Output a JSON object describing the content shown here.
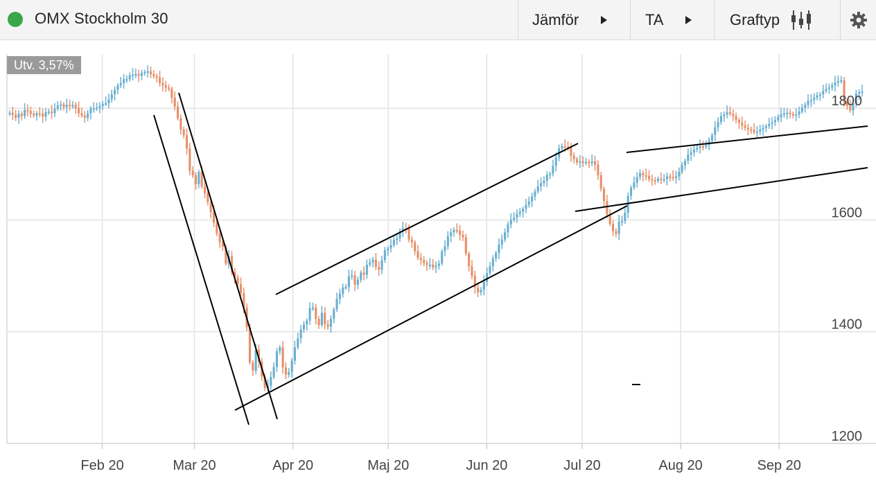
{
  "header": {
    "title": "OMX Stockholm 30",
    "status_color": "#3aa64a",
    "compare_label": "Jämför",
    "ta_label": "TA",
    "charttype_label": "Graftyp",
    "settings_icon": "gear-icon",
    "charttype_icon": "candlestick-icon"
  },
  "badge": {
    "label": "Utv. 3,57%"
  },
  "chart_data": {
    "type": "candlestick",
    "title": "OMX Stockholm 30",
    "change_label": "Utv. 3,57%",
    "x_tick_labels": [
      "Feb 20",
      "Mar 20",
      "Apr 20",
      "Maj 20",
      "Jun 20",
      "Jul 20",
      "Aug 20",
      "Sep 20"
    ],
    "x_tick_dates": [
      "2020-02-01",
      "2020-03-01",
      "2020-04-01",
      "2020-05-01",
      "2020-06-01",
      "2020-07-01",
      "2020-08-01",
      "2020-09-01"
    ],
    "x_range": [
      "2020-01-02",
      "2020-09-28"
    ],
    "y_ticks": [
      1200,
      1400,
      1600,
      1800
    ],
    "ylim": [
      1200,
      1897
    ],
    "y_axis_position": "right",
    "grid": true,
    "colors": {
      "up": "#6ab0d0",
      "down": "#e6906a",
      "grid": "#e3e3e3",
      "trend": "#000000"
    },
    "closes": [
      1792,
      1788,
      1783,
      1790,
      1786,
      1797,
      1795,
      1790,
      1787,
      1791,
      1790,
      1785,
      1793,
      1794,
      1791,
      1799,
      1805,
      1807,
      1802,
      1806,
      1804,
      1806,
      1800,
      1791,
      1787,
      1783,
      1791,
      1800,
      1800,
      1801,
      1804,
      1808,
      1809,
      1816,
      1825,
      1833,
      1841,
      1845,
      1852,
      1852,
      1859,
      1860,
      1861,
      1858,
      1863,
      1865,
      1866,
      1861,
      1857,
      1855,
      1845,
      1841,
      1837,
      1835,
      1819,
      1803,
      1782,
      1762,
      1752,
      1728,
      1688,
      1680,
      1664,
      1686,
      1660,
      1648,
      1632,
      1614,
      1595,
      1576,
      1560,
      1552,
      1522,
      1535,
      1507,
      1497,
      1485,
      1469,
      1443,
      1408,
      1345,
      1330,
      1368,
      1346,
      1320,
      1299,
      1303,
      1319,
      1337,
      1365,
      1372,
      1336,
      1323,
      1328,
      1348,
      1372,
      1388,
      1404,
      1413,
      1420,
      1442,
      1443,
      1423,
      1412,
      1434,
      1413,
      1409,
      1423,
      1440,
      1459,
      1468,
      1479,
      1480,
      1499,
      1501,
      1484,
      1493,
      1506,
      1502,
      1520,
      1524,
      1529,
      1516,
      1511,
      1528,
      1546,
      1549,
      1555,
      1564,
      1567,
      1580,
      1585,
      1584,
      1565,
      1560,
      1544,
      1532,
      1528,
      1523,
      1520,
      1520,
      1515,
      1518,
      1522,
      1544,
      1553,
      1571,
      1578,
      1582,
      1581,
      1573,
      1569,
      1540,
      1517,
      1500,
      1479,
      1470,
      1475,
      1489,
      1505,
      1517,
      1531,
      1541,
      1556,
      1565,
      1578,
      1592,
      1600,
      1604,
      1611,
      1615,
      1620,
      1627,
      1633,
      1642,
      1651,
      1660,
      1666,
      1670,
      1681,
      1683,
      1697,
      1712,
      1728,
      1732,
      1731,
      1730,
      1715,
      1709,
      1703,
      1705,
      1702,
      1704,
      1702,
      1705,
      1699,
      1680,
      1656,
      1634,
      1610,
      1593,
      1580,
      1575,
      1597,
      1598,
      1613,
      1643,
      1658,
      1667,
      1677,
      1684,
      1680,
      1679,
      1673,
      1671,
      1670,
      1674,
      1673,
      1673,
      1678,
      1677,
      1675,
      1678,
      1686,
      1698,
      1706,
      1717,
      1721,
      1726,
      1729,
      1732,
      1731,
      1734,
      1742,
      1752,
      1766,
      1775,
      1786,
      1789,
      1793,
      1790,
      1786,
      1779,
      1774,
      1769,
      1765,
      1762,
      1761,
      1757,
      1758,
      1762,
      1765,
      1768,
      1772,
      1775,
      1779,
      1784,
      1789,
      1791,
      1792,
      1790,
      1787,
      1789,
      1794,
      1801,
      1806,
      1813,
      1815,
      1819,
      1823,
      1825,
      1831,
      1835,
      1837,
      1841,
      1846,
      1849,
      1850,
      1813,
      1804,
      1796,
      1808,
      1826,
      1829,
      1830
    ]
  }
}
